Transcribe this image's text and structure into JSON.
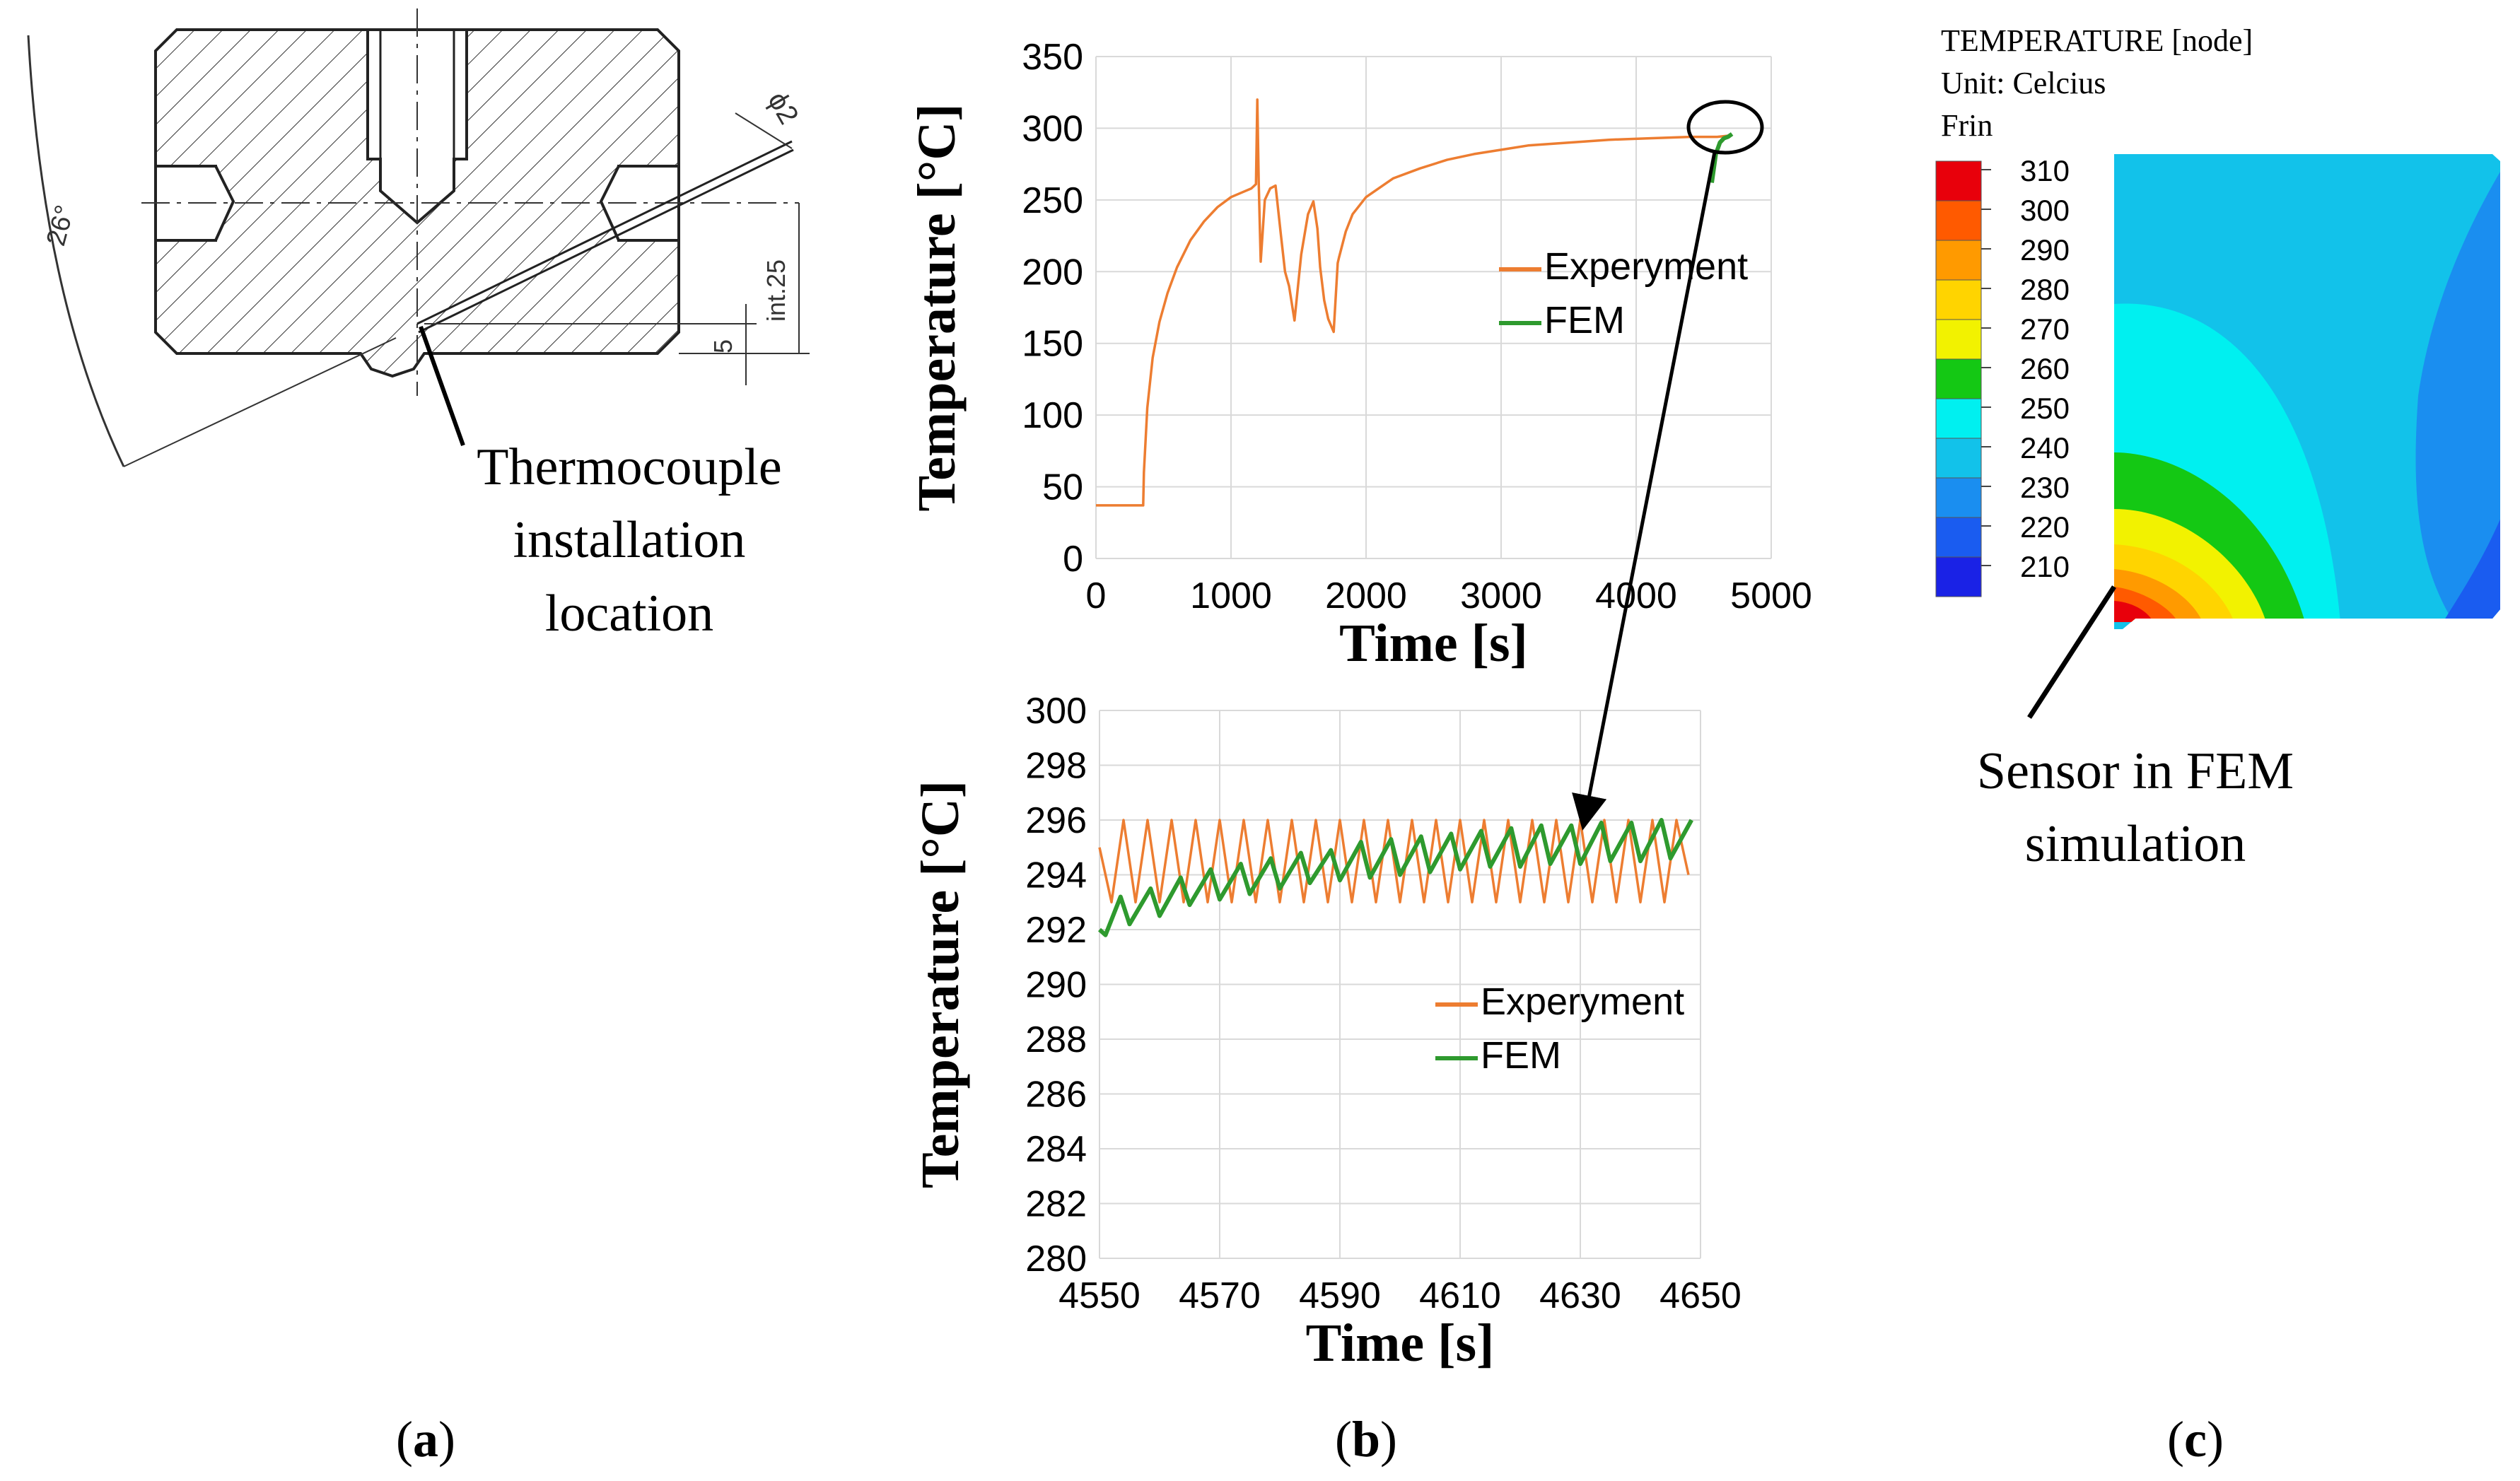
{
  "panel_a": {
    "dims": {
      "angle": "26°",
      "dia": "ϕ2",
      "depth": "int.25",
      "offset": "5"
    },
    "callout": [
      "Thermocouple",
      "installation",
      "location"
    ],
    "label_open": "(",
    "label_letter": "a",
    "label_close": ")"
  },
  "panel_b": {
    "label_open": "(",
    "label_letter": "b",
    "label_close": ")",
    "arrow_note": "zoom of the end of the top plot"
  },
  "panel_c": {
    "title_line1": "TEMPERATURE [node]",
    "title_line2": "Unit: Celcius",
    "title_line3": "Frin",
    "legend_levels": [
      310,
      300,
      290,
      280,
      270,
      260,
      250,
      240,
      230,
      220,
      210
    ],
    "legend_colors": [
      "#e8000b",
      "#ff5a00",
      "#ff9a00",
      "#ffd400",
      "#f2f200",
      "#14c814",
      "#00f0f0",
      "#12c2ea",
      "#1a8ef0",
      "#1a5cf0",
      "#1a22e6"
    ],
    "callout": [
      "Sensor in FEM",
      "simulation"
    ],
    "label_open": "(",
    "label_letter": "c",
    "label_close": ")"
  },
  "colors": {
    "experiment": "#ed7d31",
    "fem": "#2e9a2e",
    "grid": "#d9d9d9"
  },
  "chart_data": [
    {
      "type": "line",
      "title": "",
      "xlabel": "Time [s]",
      "ylabel": "Temperature [°C]",
      "xlim": [
        0,
        5000
      ],
      "ylim": [
        0,
        350
      ],
      "xticks": [
        0,
        1000,
        2000,
        3000,
        4000,
        5000
      ],
      "yticks": [
        0,
        50,
        100,
        150,
        200,
        250,
        300,
        350
      ],
      "legend": [
        "Experyment",
        "FEM"
      ],
      "legend_position": "center-right",
      "series": [
        {
          "name": "Experyment",
          "x": [
            0,
            350,
            355,
            380,
            420,
            470,
            530,
            600,
            700,
            800,
            900,
            1000,
            1100,
            1150,
            1185,
            1195,
            1205,
            1220,
            1250,
            1290,
            1330,
            1370,
            1400,
            1430,
            1470,
            1520,
            1570,
            1610,
            1640,
            1660,
            1690,
            1720,
            1760,
            1790,
            1800,
            1850,
            1900,
            2000,
            2200,
            2400,
            2600,
            2800,
            3000,
            3200,
            3500,
            3800,
            4100,
            4400,
            4600,
            4700
          ],
          "y": [
            37,
            37,
            60,
            105,
            140,
            165,
            185,
            203,
            222,
            235,
            245,
            252,
            256,
            258,
            261,
            320,
            262,
            207,
            250,
            258,
            260,
            225,
            200,
            190,
            166,
            212,
            240,
            249,
            230,
            203,
            180,
            167,
            158,
            206,
            210,
            228,
            240,
            252,
            265,
            272,
            278,
            282,
            285,
            288,
            290,
            292,
            293,
            294,
            294,
            295
          ]
        },
        {
          "name": "FEM",
          "x": [
            4560,
            4590,
            4620,
            4650,
            4680,
            4710
          ],
          "y": [
            262,
            282,
            290,
            293,
            294,
            296
          ]
        }
      ]
    },
    {
      "type": "line",
      "title": "",
      "xlabel": "Time [s]",
      "ylabel": "Temperature [°C]",
      "xlim": [
        4550,
        4650
      ],
      "ylim": [
        280,
        300
      ],
      "xticks": [
        4550,
        4570,
        4590,
        4610,
        4630,
        4650
      ],
      "yticks": [
        280,
        282,
        284,
        286,
        288,
        290,
        292,
        294,
        296,
        298,
        300
      ],
      "legend": [
        "Experyment",
        "FEM"
      ],
      "legend_position": "right",
      "series": [
        {
          "name": "Experyment",
          "x": [
            4550,
            4552,
            4554,
            4556,
            4558,
            4560,
            4562,
            4564,
            4566,
            4568,
            4570,
            4572,
            4574,
            4576,
            4578,
            4580,
            4582,
            4584,
            4586,
            4588,
            4590,
            4592,
            4594,
            4596,
            4598,
            4600,
            4602,
            4604,
            4606,
            4608,
            4610,
            4612,
            4614,
            4616,
            4618,
            4620,
            4622,
            4624,
            4626,
            4628,
            4630,
            4632,
            4634,
            4636,
            4638,
            4640,
            4642,
            4644,
            4646,
            4648
          ],
          "y": [
            295,
            293,
            296,
            293,
            296,
            293,
            296,
            293,
            296,
            293,
            296,
            293,
            296,
            293,
            296,
            293,
            296,
            293,
            296,
            293,
            296,
            293,
            296,
            293,
            296,
            293,
            296,
            293,
            296,
            293,
            296,
            293,
            296,
            293,
            296,
            293,
            296,
            293,
            296,
            293,
            296,
            293,
            296,
            293,
            296,
            293,
            296,
            293,
            296,
            294
          ]
        },
        {
          "name": "FEM",
          "x": [
            4550,
            4551,
            4553.5,
            4555,
            4558.5,
            4560,
            4563.5,
            4565,
            4568.5,
            4570,
            4573.5,
            4575,
            4578.5,
            4580,
            4583.5,
            4585,
            4588.5,
            4590,
            4593.5,
            4595,
            4598.5,
            4600,
            4603.5,
            4605,
            4608.5,
            4610,
            4613.5,
            4615,
            4618.5,
            4620,
            4623.5,
            4625,
            4628.5,
            4630,
            4633.5,
            4635,
            4638.5,
            4640,
            4643.5,
            4645,
            4648.5
          ],
          "y": [
            292.0,
            291.8,
            293.2,
            292.2,
            293.5,
            292.5,
            293.9,
            292.9,
            294.2,
            293.1,
            294.4,
            293.3,
            294.6,
            293.5,
            294.8,
            293.7,
            294.9,
            293.8,
            295.2,
            293.9,
            295.3,
            294.0,
            295.4,
            294.1,
            295.5,
            294.2,
            295.6,
            294.3,
            295.7,
            294.3,
            295.8,
            294.4,
            295.8,
            294.4,
            295.9,
            294.5,
            295.9,
            294.5,
            296.0,
            294.6,
            296.0
          ]
        }
      ]
    }
  ]
}
